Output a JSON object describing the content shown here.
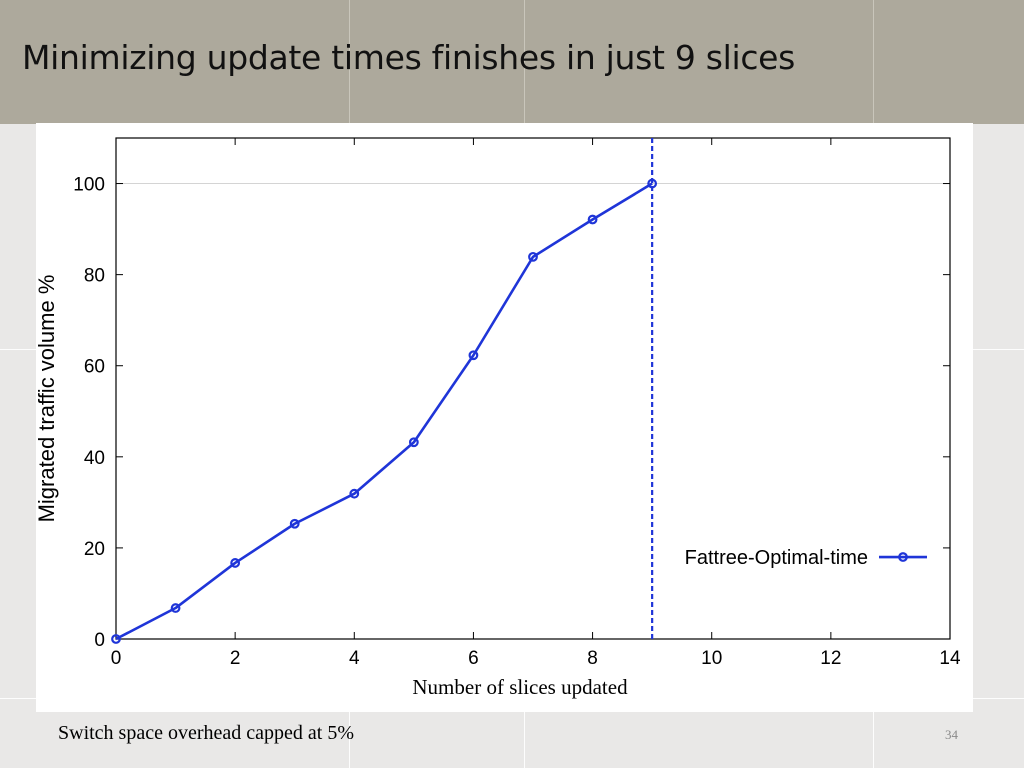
{
  "slide": {
    "title": "Minimizing update times finishes in just 9 slices",
    "footer_note": "Switch space overhead capped at 5%",
    "page_number": "34"
  },
  "colors": {
    "series": "#1f35d8",
    "title_band": "#ada99c",
    "background": "#e9e8e7"
  },
  "chart_data": {
    "type": "line",
    "xlabel": "Number of slices updated",
    "ylabel": "Migrated traffic volume %",
    "xlim": [
      0,
      14
    ],
    "ylim": [
      0,
      110
    ],
    "x_ticks": [
      "0",
      "2",
      "4",
      "6",
      "8",
      "10",
      "12",
      "14"
    ],
    "y_ticks": [
      "0",
      "20",
      "40",
      "60",
      "80",
      "100"
    ],
    "grid": "horizontal line at 100",
    "legend_position": "right",
    "vertical_marker_x": 9,
    "series": [
      {
        "name": "Fattree-Optimal-time",
        "x": [
          0,
          1,
          2,
          3,
          4,
          5,
          6,
          7,
          8,
          9
        ],
        "y": [
          0,
          6.8,
          16.7,
          25.3,
          31.9,
          43.2,
          62.3,
          83.9,
          92.1,
          100
        ]
      }
    ]
  }
}
